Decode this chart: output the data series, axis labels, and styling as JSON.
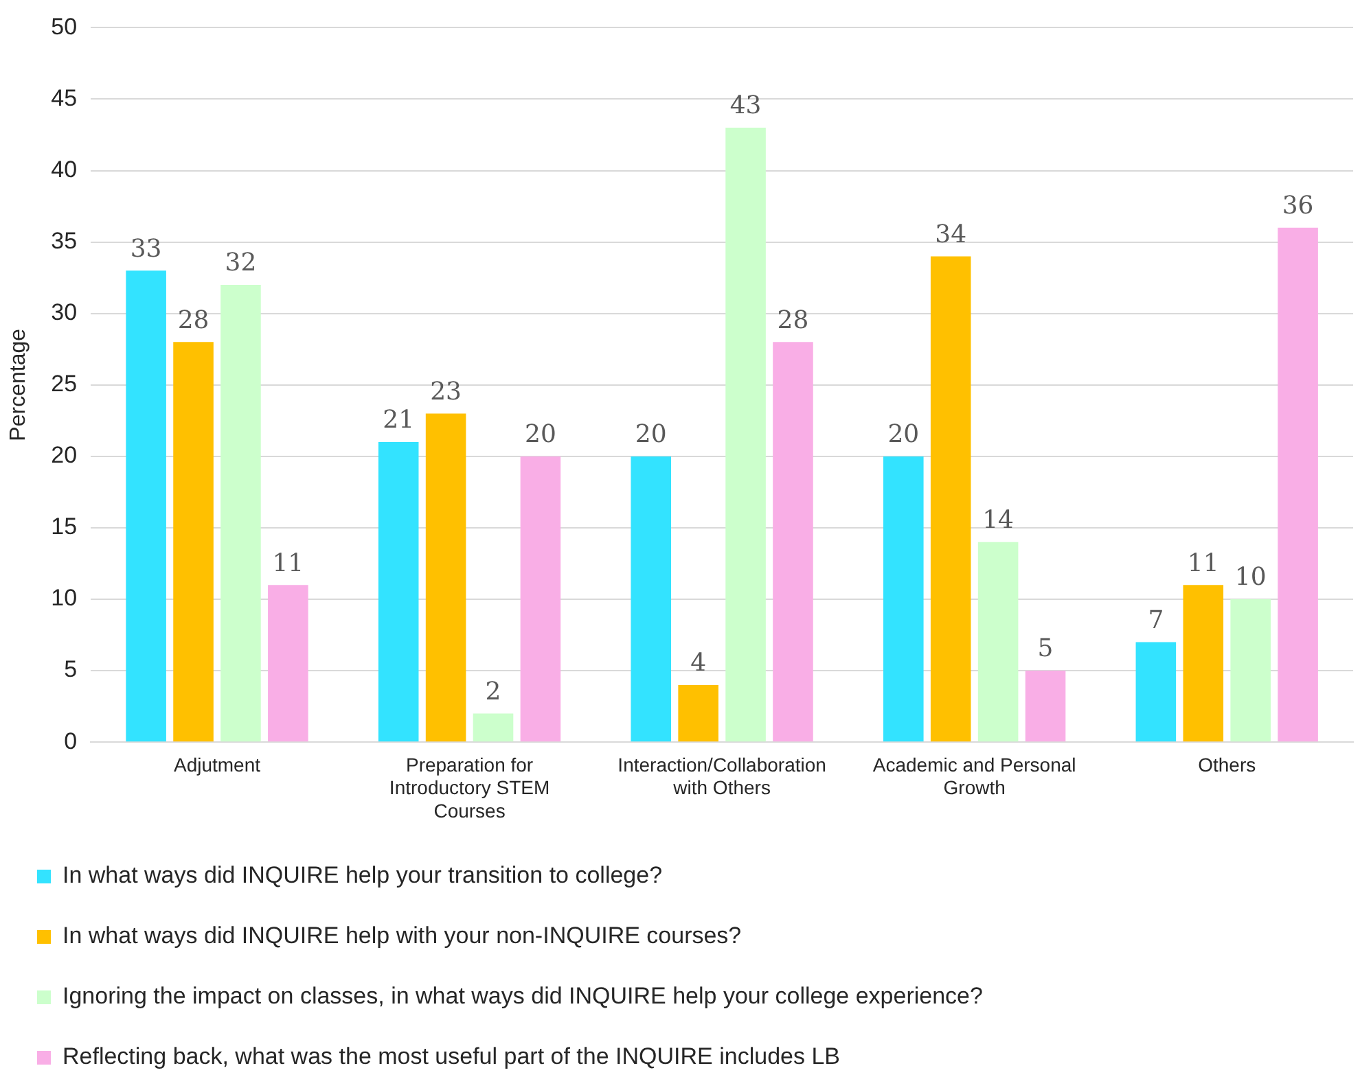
{
  "chart_data": {
    "type": "bar",
    "ylabel": "Percentage",
    "categories": [
      "Adjutment",
      "Preparation for Introductory STEM Courses",
      "Interaction/Collaboration with Others",
      "Academic and Personal Growth",
      "Others"
    ],
    "series": [
      {
        "name": "In what ways did INQUIRE help your transition to college?",
        "color": "#33e3ff",
        "values": [
          33,
          21,
          20,
          20,
          7
        ]
      },
      {
        "name": "In what ways did INQUIRE help with your non-INQUIRE courses?",
        "color": "#ffc000",
        "values": [
          28,
          23,
          4,
          34,
          11
        ]
      },
      {
        "name": "Ignoring the impact on classes, in what ways did INQUIRE help your college experience?",
        "color": "#ccffcc",
        "values": [
          32,
          2,
          43,
          14,
          10
        ]
      },
      {
        "name": "Reflecting back, what was the most useful part of the INQUIRE includes LB",
        "color": "#f9aee6",
        "values": [
          11,
          20,
          28,
          5,
          36
        ]
      }
    ],
    "ylim": [
      0,
      50
    ],
    "yticks": [
      0,
      5,
      10,
      15,
      20,
      25,
      30,
      35,
      40,
      45,
      50
    ],
    "grid": "y",
    "legend": "bottom",
    "data_labels": true
  }
}
